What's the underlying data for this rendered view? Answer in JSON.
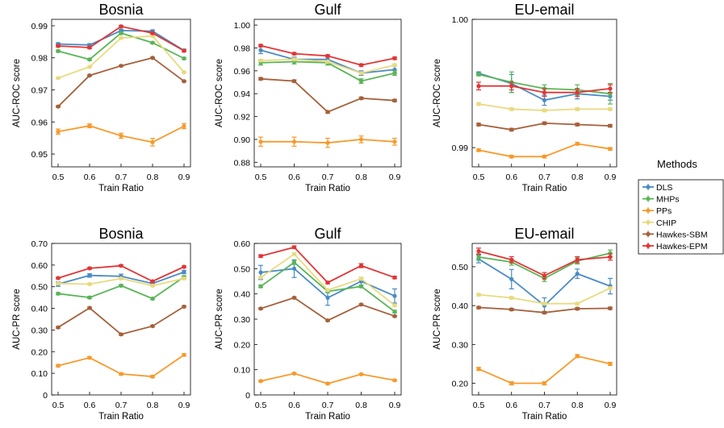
{
  "colors": {
    "DLS": "#4a8bc4",
    "MHPs": "#58b556",
    "PPs": "#f79a2b",
    "CHIP": "#e8da7e",
    "Hawkes-SBM": "#a5603a",
    "Hawkes-EPM": "#e13535"
  },
  "legend": {
    "title": "Methods",
    "entries": [
      "DLS",
      "MHPs",
      "PPs",
      "CHIP",
      "Hawkes-SBM",
      "Hawkes-EPM"
    ]
  },
  "chart_data": [
    {
      "type": "line",
      "title": "Bosnia",
      "xlabel": "Train Ratio",
      "ylabel": "AUC-ROC score",
      "x": [
        0.5,
        0.6,
        0.7,
        0.8,
        0.9
      ],
      "xlim": [
        0.5,
        0.9
      ],
      "ylim": [
        0.946,
        0.992
      ],
      "yticks": [
        0.95,
        0.96,
        0.97,
        0.98,
        0.99
      ],
      "ytick_labels": [
        "0.95",
        "0.96",
        "0.97",
        "0.98",
        "0.99"
      ],
      "series": [
        {
          "name": "DLS",
          "values": [
            0.9843,
            0.984,
            0.9885,
            0.9883,
            0.9823
          ],
          "err": [
            0.0004,
            0.0004,
            0.0004,
            0.0004,
            0.0004
          ]
        },
        {
          "name": "MHPs",
          "values": [
            0.9821,
            0.9795,
            0.9877,
            0.9847,
            0.9798
          ],
          "err": [
            0.0003,
            0.0003,
            0.0003,
            0.0003,
            0.0003
          ]
        },
        {
          "name": "PPs",
          "values": [
            0.957,
            0.9588,
            0.9557,
            0.9537,
            0.9587
          ],
          "err": [
            0.0008,
            0.0006,
            0.0008,
            0.0012,
            0.0008
          ]
        },
        {
          "name": "CHIP",
          "values": [
            0.9737,
            0.9772,
            0.9862,
            0.9868,
            0.9755
          ],
          "err": [
            0.0002,
            0.0002,
            0.0002,
            0.0002,
            0.0002
          ]
        },
        {
          "name": "Hawkes-SBM",
          "values": [
            0.9648,
            0.9745,
            0.9775,
            0.98,
            0.9727
          ],
          "err": [
            0.0002,
            0.0002,
            0.0002,
            0.0002,
            0.0002
          ]
        },
        {
          "name": "Hawkes-EPM",
          "values": [
            0.9837,
            0.9832,
            0.9898,
            0.9877,
            0.9822
          ],
          "err": [
            0.0003,
            0.0003,
            0.0003,
            0.0003,
            0.0003
          ]
        }
      ]
    },
    {
      "type": "line",
      "title": "Gulf",
      "xlabel": "Train Ratio",
      "ylabel": "AUC-ROC score",
      "x": [
        0.5,
        0.6,
        0.7,
        0.8,
        0.9
      ],
      "xlim": [
        0.5,
        0.9
      ],
      "ylim": [
        0.876,
        1.005
      ],
      "yticks": [
        0.88,
        0.9,
        0.92,
        0.94,
        0.96,
        0.98,
        1.0
      ],
      "ytick_labels": [
        "0.88",
        "0.90",
        "0.92",
        "0.94",
        "0.96",
        "0.98",
        "1.00"
      ],
      "series": [
        {
          "name": "DLS",
          "values": [
            0.978,
            0.97,
            0.97,
            0.958,
            0.961
          ],
          "err": [
            0.003,
            0.002,
            0.002,
            0.002,
            0.003
          ]
        },
        {
          "name": "MHPs",
          "values": [
            0.967,
            0.968,
            0.967,
            0.951,
            0.958
          ],
          "err": [
            0.002,
            0.002,
            0.002,
            0.002,
            0.002
          ]
        },
        {
          "name": "PPs",
          "values": [
            0.898,
            0.898,
            0.897,
            0.9,
            0.898
          ],
          "err": [
            0.004,
            0.004,
            0.004,
            0.003,
            0.003
          ]
        },
        {
          "name": "CHIP",
          "values": [
            0.969,
            0.97,
            0.968,
            0.958,
            0.965
          ],
          "err": [
            0.001,
            0.001,
            0.001,
            0.001,
            0.001
          ]
        },
        {
          "name": "Hawkes-SBM",
          "values": [
            0.953,
            0.951,
            0.924,
            0.936,
            0.934
          ],
          "err": [
            0.001,
            0.001,
            0.001,
            0.001,
            0.001
          ]
        },
        {
          "name": "Hawkes-EPM",
          "values": [
            0.982,
            0.975,
            0.973,
            0.965,
            0.971
          ],
          "err": [
            0.001,
            0.001,
            0.001,
            0.001,
            0.001
          ]
        }
      ]
    },
    {
      "type": "line",
      "title": "EU-email",
      "xlabel": "Train Ratio",
      "ylabel": "AUC-ROC score",
      "x": [
        0.5,
        0.6,
        0.7,
        0.8,
        0.9
      ],
      "xlim": [
        0.5,
        0.9
      ],
      "ylim": [
        0.9885,
        1.0
      ],
      "yticks": [
        0.99,
        1.0
      ],
      "ytick_labels": [
        "0.99",
        "1.00"
      ],
      "series": [
        {
          "name": "DLS",
          "values": [
            0.9958,
            0.995,
            0.9937,
            0.9942,
            0.994
          ],
          "err": [
            0.0001,
            0.0007,
            0.0004,
            0.0004,
            0.0003
          ]
        },
        {
          "name": "MHPs",
          "values": [
            0.9957,
            0.9951,
            0.9946,
            0.9945,
            0.9942
          ],
          "err": [
            0.0001,
            0.0008,
            0.0003,
            0.0004,
            0.0008
          ]
        },
        {
          "name": "PPs",
          "values": [
            0.9898,
            0.9893,
            0.9893,
            0.9903,
            0.9899
          ],
          "err": [
            0.0001,
            0.0001,
            0.0001,
            0.0001,
            0.0001
          ]
        },
        {
          "name": "CHIP",
          "values": [
            0.9934,
            0.993,
            0.9929,
            0.993,
            0.993
          ],
          "err": [
            0.0001,
            0.0001,
            0.0001,
            0.0001,
            0.0001
          ]
        },
        {
          "name": "Hawkes-SBM",
          "values": [
            0.9918,
            0.9914,
            0.9919,
            0.9918,
            0.9917
          ],
          "err": [
            0.0001,
            0.0001,
            0.0001,
            0.0001,
            0.0001
          ]
        },
        {
          "name": "Hawkes-EPM",
          "values": [
            0.9948,
            0.9948,
            0.9943,
            0.9943,
            0.9946
          ],
          "err": [
            0.0003,
            0.0003,
            0.0003,
            0.0003,
            0.0003
          ]
        }
      ]
    },
    {
      "type": "line",
      "title": "Bosnia",
      "xlabel": "Train Ratio",
      "ylabel": "AUC-PR score",
      "x": [
        0.5,
        0.6,
        0.7,
        0.8,
        0.9
      ],
      "xlim": [
        0.5,
        0.9
      ],
      "ylim": [
        0,
        0.7
      ],
      "yticks": [
        0,
        0.1,
        0.2,
        0.3,
        0.4,
        0.5,
        0.6,
        0.7
      ],
      "ytick_labels": [
        "0",
        "0.10",
        "0.20",
        "0.30",
        "0.40",
        "0.50",
        "0.60",
        "0.70"
      ],
      "series": [
        {
          "name": "DLS",
          "values": [
            0.512,
            0.552,
            0.548,
            0.515,
            0.568
          ],
          "err": [
            0.01,
            0.008,
            0.01,
            0.008,
            0.008
          ]
        },
        {
          "name": "MHPs",
          "values": [
            0.468,
            0.45,
            0.505,
            0.445,
            0.545
          ],
          "err": [
            0.005,
            0.005,
            0.005,
            0.005,
            0.005
          ]
        },
        {
          "name": "PPs",
          "values": [
            0.135,
            0.172,
            0.097,
            0.085,
            0.185
          ],
          "err": [
            0.005,
            0.005,
            0.005,
            0.005,
            0.005
          ]
        },
        {
          "name": "CHIP",
          "values": [
            0.515,
            0.512,
            0.538,
            0.505,
            0.538
          ],
          "err": [
            0.004,
            0.004,
            0.004,
            0.004,
            0.004
          ]
        },
        {
          "name": "Hawkes-SBM",
          "values": [
            0.312,
            0.402,
            0.28,
            0.318,
            0.408
          ],
          "err": [
            0.004,
            0.004,
            0.004,
            0.004,
            0.004
          ]
        },
        {
          "name": "Hawkes-EPM",
          "values": [
            0.54,
            0.585,
            0.597,
            0.525,
            0.592
          ],
          "err": [
            0.004,
            0.004,
            0.004,
            0.004,
            0.004
          ]
        }
      ]
    },
    {
      "type": "line",
      "title": "Gulf",
      "xlabel": "Train Ratio",
      "ylabel": "AUC-PR score",
      "x": [
        0.5,
        0.6,
        0.7,
        0.8,
        0.9
      ],
      "xlim": [
        0.5,
        0.9
      ],
      "ylim": [
        0,
        0.6
      ],
      "yticks": [
        0,
        0.1,
        0.2,
        0.3,
        0.4,
        0.5,
        0.6
      ],
      "ytick_labels": [
        "0",
        "0.10",
        "0.20",
        "0.30",
        "0.40",
        "0.50",
        "0.60"
      ],
      "series": [
        {
          "name": "DLS",
          "values": [
            0.485,
            0.5,
            0.385,
            0.45,
            0.392
          ],
          "err": [
            0.028,
            0.035,
            0.03,
            0.015,
            0.028
          ]
        },
        {
          "name": "MHPs",
          "values": [
            0.43,
            0.525,
            0.41,
            0.43,
            0.33
          ],
          "err": [
            0.005,
            0.008,
            0.005,
            0.005,
            0.005
          ]
        },
        {
          "name": "PPs",
          "values": [
            0.055,
            0.085,
            0.045,
            0.082,
            0.058
          ],
          "err": [
            0.003,
            0.003,
            0.003,
            0.003,
            0.003
          ]
        },
        {
          "name": "CHIP",
          "values": [
            0.465,
            0.558,
            0.415,
            0.46,
            0.355
          ],
          "err": [
            0.004,
            0.004,
            0.004,
            0.004,
            0.004
          ]
        },
        {
          "name": "Hawkes-SBM",
          "values": [
            0.342,
            0.385,
            0.295,
            0.358,
            0.312
          ],
          "err": [
            0.003,
            0.003,
            0.003,
            0.003,
            0.003
          ]
        },
        {
          "name": "Hawkes-EPM",
          "values": [
            0.55,
            0.585,
            0.445,
            0.512,
            0.465
          ],
          "err": [
            0.005,
            0.005,
            0.005,
            0.008,
            0.005
          ]
        }
      ]
    },
    {
      "type": "line",
      "title": "EU-email",
      "xlabel": "Train Ratio",
      "ylabel": "AUC-PR score",
      "x": [
        0.5,
        0.6,
        0.7,
        0.8,
        0.9
      ],
      "xlim": [
        0.5,
        0.9
      ],
      "ylim": [
        0.17,
        0.56
      ],
      "yticks": [
        0.2,
        0.3,
        0.4,
        0.5
      ],
      "ytick_labels": [
        "0.20",
        "0.30",
        "0.40",
        "0.50"
      ],
      "series": [
        {
          "name": "DLS",
          "values": [
            0.52,
            0.468,
            0.4,
            0.482,
            0.45
          ],
          "err": [
            0.01,
            0.025,
            0.02,
            0.012,
            0.02
          ]
        },
        {
          "name": "MHPs",
          "values": [
            0.525,
            0.512,
            0.47,
            0.515,
            0.535
          ],
          "err": [
            0.008,
            0.008,
            0.008,
            0.008,
            0.008
          ]
        },
        {
          "name": "PPs",
          "values": [
            0.237,
            0.2,
            0.2,
            0.27,
            0.25
          ],
          "err": [
            0.004,
            0.004,
            0.004,
            0.004,
            0.004
          ]
        },
        {
          "name": "CHIP",
          "values": [
            0.428,
            0.42,
            0.405,
            0.405,
            0.445
          ],
          "err": [
            0.003,
            0.003,
            0.003,
            0.003,
            0.003
          ]
        },
        {
          "name": "Hawkes-SBM",
          "values": [
            0.395,
            0.39,
            0.382,
            0.392,
            0.393
          ],
          "err": [
            0.003,
            0.003,
            0.003,
            0.003,
            0.003
          ]
        },
        {
          "name": "Hawkes-EPM",
          "values": [
            0.54,
            0.518,
            0.477,
            0.518,
            0.525
          ],
          "err": [
            0.008,
            0.008,
            0.008,
            0.008,
            0.008
          ]
        }
      ]
    }
  ]
}
